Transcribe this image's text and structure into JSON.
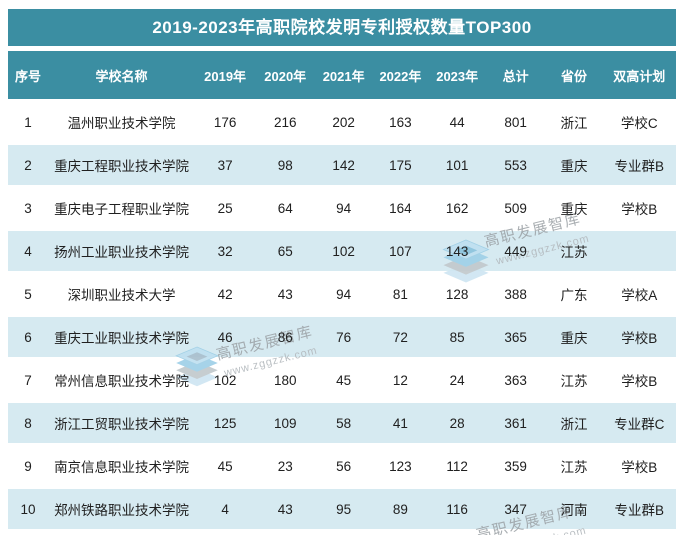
{
  "chart_data": {
    "type": "table",
    "title": "2019-2023年高职院校发明专利授权数量TOP300",
    "columns": [
      "序号",
      "学校名称",
      "2019年",
      "2020年",
      "2021年",
      "2022年",
      "2023年",
      "总计",
      "省份",
      "双高计划"
    ],
    "rows": [
      [
        "1",
        "温州职业技术学院",
        "176",
        "216",
        "202",
        "163",
        "44",
        "801",
        "浙江",
        "学校C"
      ],
      [
        "2",
        "重庆工程职业技术学院",
        "37",
        "98",
        "142",
        "175",
        "101",
        "553",
        "重庆",
        "专业群B"
      ],
      [
        "3",
        "重庆电子工程职业学院",
        "25",
        "64",
        "94",
        "164",
        "162",
        "509",
        "重庆",
        "学校B"
      ],
      [
        "4",
        "扬州工业职业技术学院",
        "32",
        "65",
        "102",
        "107",
        "143",
        "449",
        "江苏",
        ""
      ],
      [
        "5",
        "深圳职业技术大学",
        "42",
        "43",
        "94",
        "81",
        "128",
        "388",
        "广东",
        "学校A"
      ],
      [
        "6",
        "重庆工业职业技术学院",
        "46",
        "86",
        "76",
        "72",
        "85",
        "365",
        "重庆",
        "学校B"
      ],
      [
        "7",
        "常州信息职业技术学院",
        "102",
        "180",
        "45",
        "12",
        "24",
        "363",
        "江苏",
        "学校B"
      ],
      [
        "8",
        "浙江工贸职业技术学院",
        "125",
        "109",
        "58",
        "41",
        "28",
        "361",
        "浙江",
        "专业群C"
      ],
      [
        "9",
        "南京信息职业技术学院",
        "45",
        "23",
        "56",
        "123",
        "112",
        "359",
        "江苏",
        "学校B"
      ],
      [
        "10",
        "郑州铁路职业技术学院",
        "4",
        "43",
        "95",
        "89",
        "116",
        "347",
        "河南",
        "专业群B"
      ]
    ],
    "legend_position": "none",
    "grid": false
  },
  "watermark": {
    "brand": "高职发展智库",
    "url": "www.zggzzk.com",
    "logo_icon": "stacked-layers-icon"
  },
  "colors": {
    "header_teal": "#3b8ea2",
    "row_alt_blue": "#d6eaf1",
    "body_text": "#202020",
    "header_text": "#ffffff",
    "watermark_text": "#9ba1a5",
    "watermark_url_text": "#b3b9bd",
    "logo_light_blue": "#bfe0f0",
    "logo_mid_blue": "#9fd0e8",
    "logo_gray": "#c2c9cd"
  }
}
